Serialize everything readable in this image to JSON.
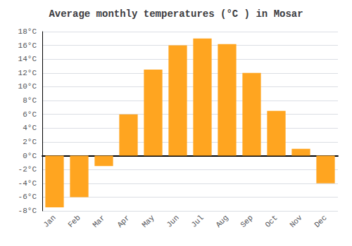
{
  "chart_data": {
    "type": "bar",
    "title": "Average monthly temperatures (°C ) in Mosar",
    "categories": [
      "Jan",
      "Feb",
      "Mar",
      "Apr",
      "May",
      "Jun",
      "Jul",
      "Aug",
      "Sep",
      "Oct",
      "Nov",
      "Dec"
    ],
    "values": [
      -7.5,
      -6.0,
      -1.5,
      6.0,
      12.5,
      16.0,
      17.0,
      16.2,
      12.0,
      6.5,
      1.0,
      -4.0
    ],
    "color": "#FFA520",
    "ylim": [
      -8,
      18
    ],
    "yticks": [
      {
        "value": -8,
        "label": "-8°C"
      },
      {
        "value": -6,
        "label": "-6°C"
      },
      {
        "value": -4,
        "label": "-4°C"
      },
      {
        "value": -2,
        "label": "-2°C"
      },
      {
        "value": 0,
        "label": "0°C"
      },
      {
        "value": 2,
        "label": "2°C"
      },
      {
        "value": 4,
        "label": "4°C"
      },
      {
        "value": 6,
        "label": "6°C"
      },
      {
        "value": 8,
        "label": "8°C"
      },
      {
        "value": 10,
        "label": "10°C"
      },
      {
        "value": 12,
        "label": "12°C"
      },
      {
        "value": 14,
        "label": "14°C"
      },
      {
        "value": 16,
        "label": "16°C"
      },
      {
        "value": 18,
        "label": "18°C"
      }
    ],
    "grid": true
  }
}
